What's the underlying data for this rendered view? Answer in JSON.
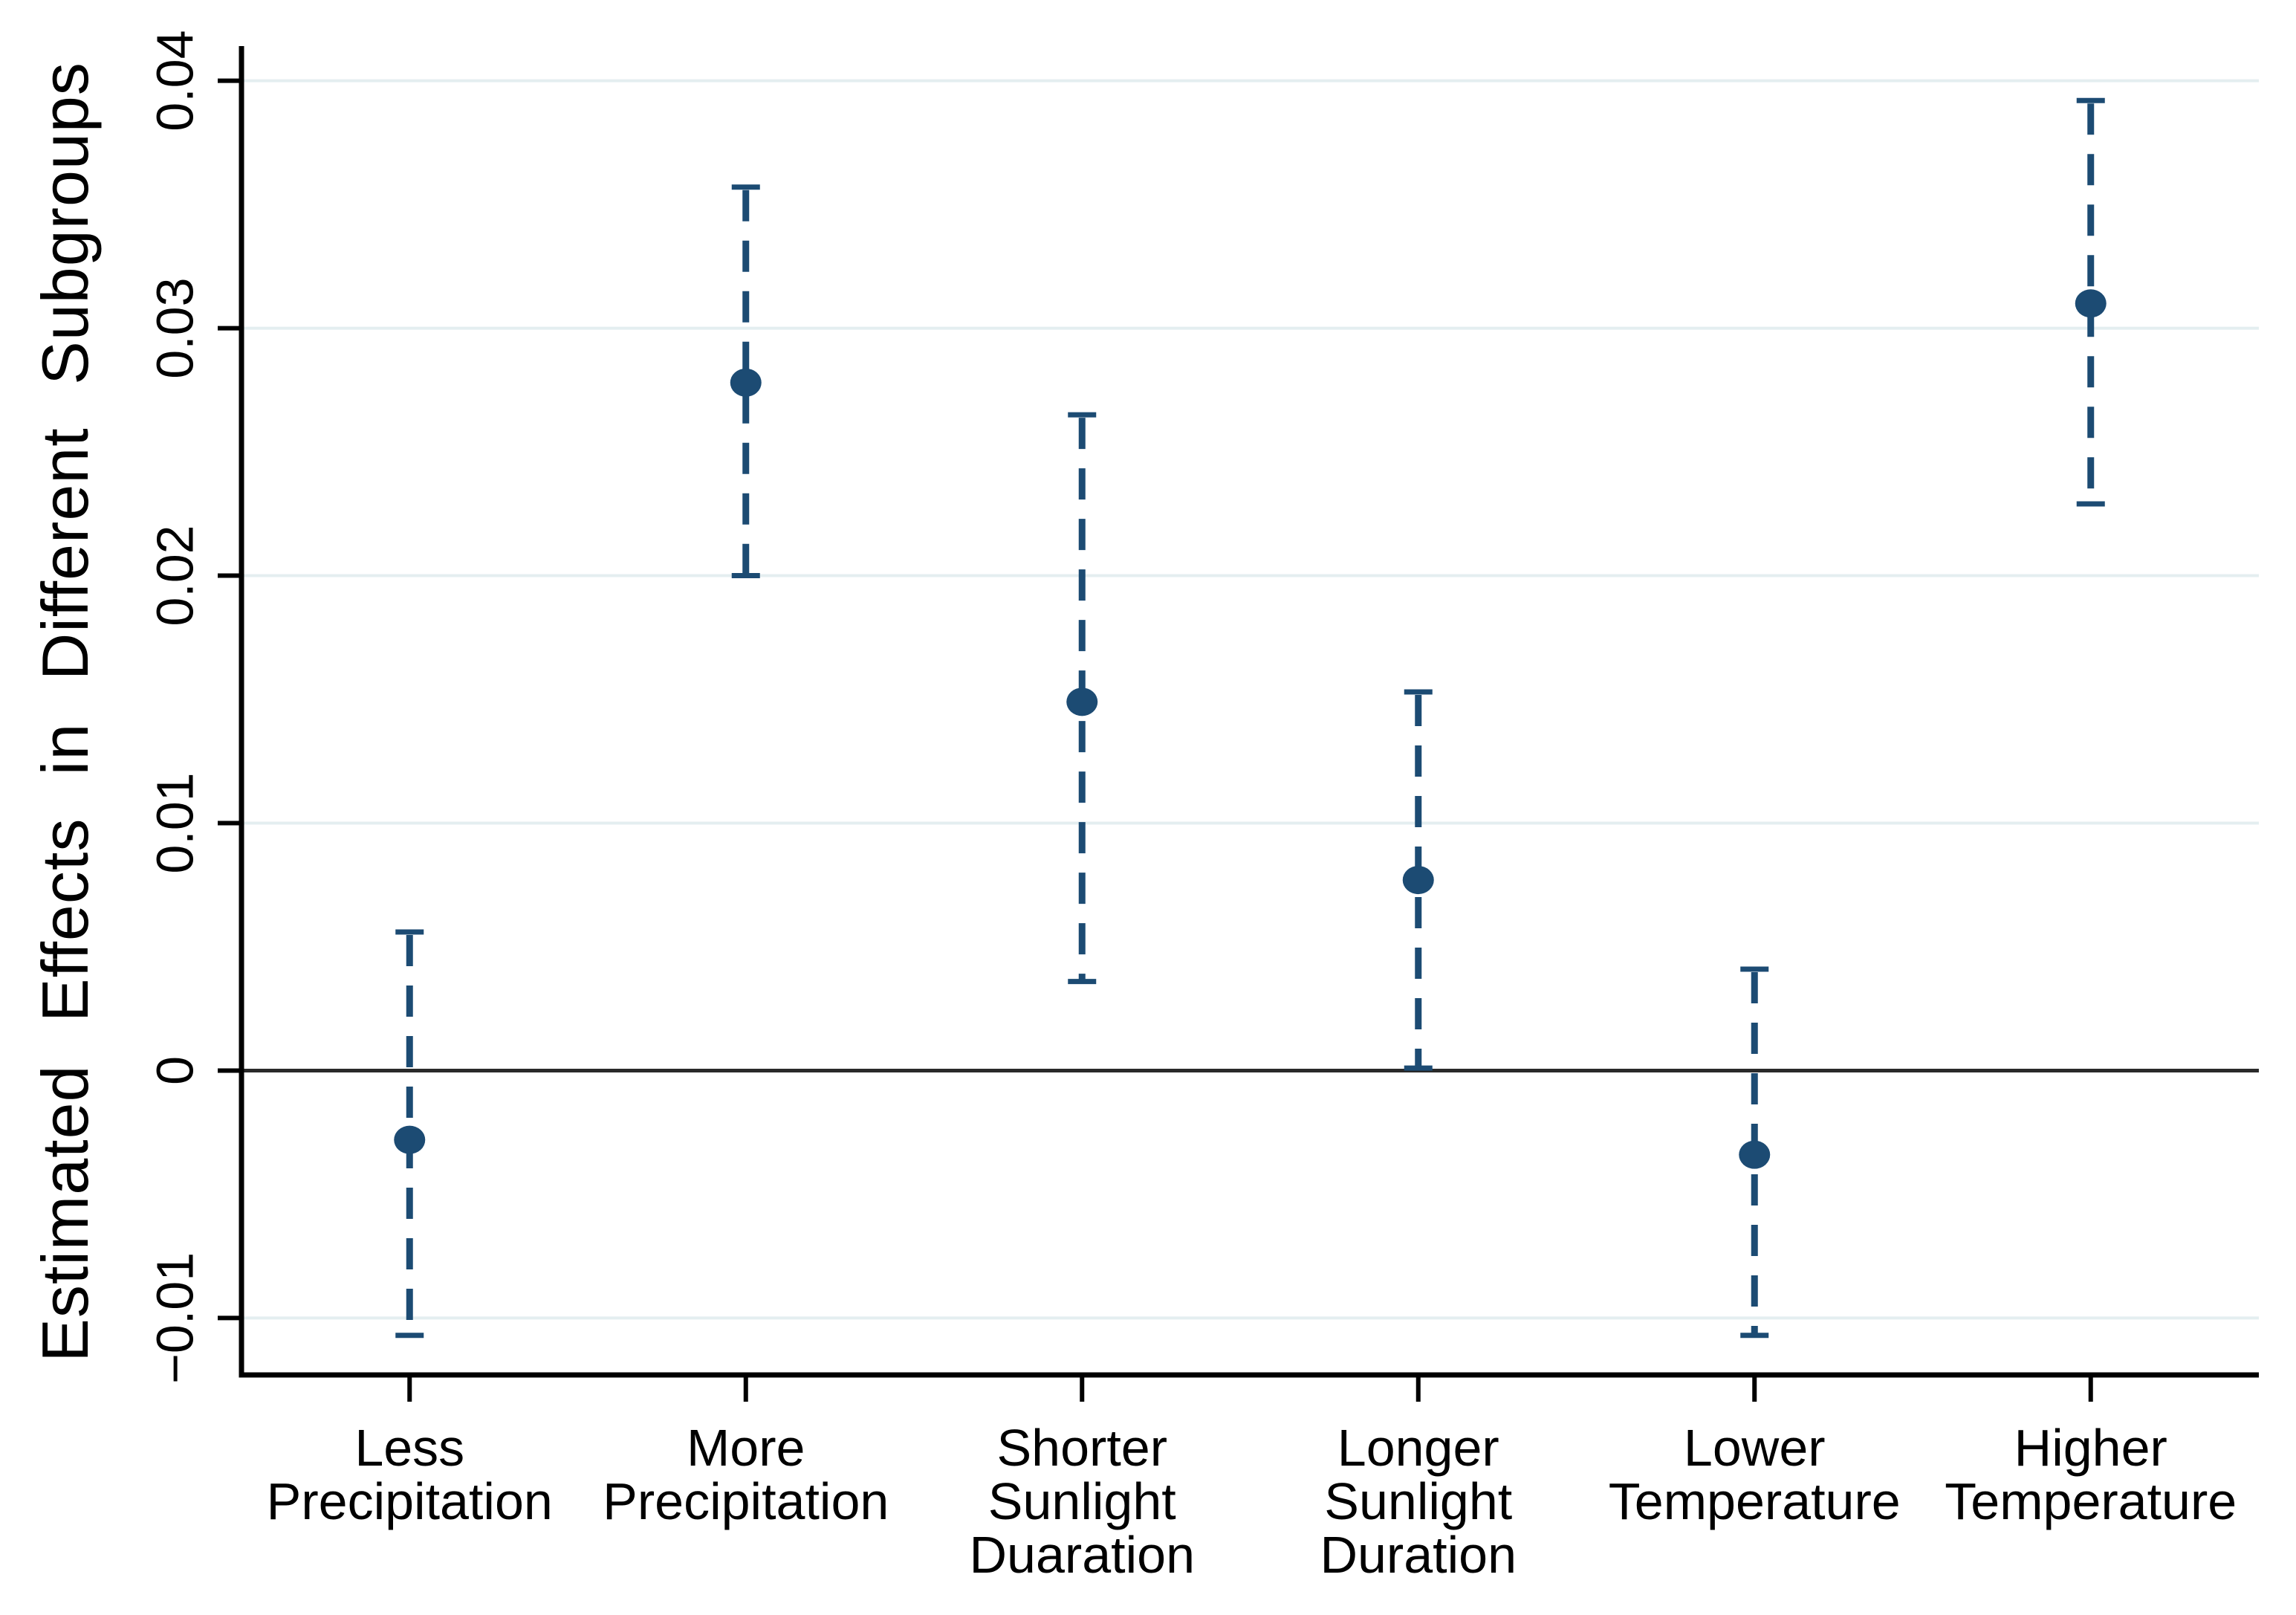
{
  "figure": {
    "background": "#ffffff",
    "ylabel": "Estimated Effects in Different Subgroups"
  },
  "chart_data": {
    "type": "scatter",
    "subtype": "coefficient-plot-with-error-bars",
    "title": "",
    "xlabel": "",
    "ylabel": "Estimated Effects in Different Subgroups",
    "legend": "none",
    "grid": "horizontal",
    "zero_line": true,
    "ylim": [
      -0.0123,
      0.0414
    ],
    "yticks": {
      "values": [
        -0.01,
        0,
        0.01,
        0.02,
        0.03,
        0.04
      ],
      "labels": [
        "−0.01",
        "0",
        "0.01",
        "0.02",
        "0.03",
        "0.04"
      ]
    },
    "categories": [
      "Less Precipitation",
      "More Precipitation",
      "Shorter Sunlight Duaration",
      "Longer Sunlight Duration",
      "Lower Temperature",
      "Higher Temperature"
    ],
    "points": [
      {
        "category": "Less Precipitation",
        "label_lines": [
          "Less",
          "Precipitation"
        ],
        "estimate": -0.0028,
        "ci_low": -0.0107,
        "ci_high": 0.0056
      },
      {
        "category": "More Precipitation",
        "label_lines": [
          "More",
          "Precipitation"
        ],
        "estimate": 0.0278,
        "ci_low": 0.02,
        "ci_high": 0.0357
      },
      {
        "category": "Shorter Sunlight Duaration",
        "label_lines": [
          "Shorter",
          "Sunlight",
          "Duaration"
        ],
        "estimate": 0.0149,
        "ci_low": 0.0036,
        "ci_high": 0.0265
      },
      {
        "category": "Longer Sunlight Duration",
        "label_lines": [
          "Longer",
          "Sunlight",
          "Duration"
        ],
        "estimate": 0.0077,
        "ci_low": 0.0001,
        "ci_high": 0.0153
      },
      {
        "category": "Lower Temperature",
        "label_lines": [
          "Lower",
          "Temperature"
        ],
        "estimate": -0.0034,
        "ci_low": -0.0107,
        "ci_high": 0.0041
      },
      {
        "category": "Higher Temperature",
        "label_lines": [
          "Higher",
          "Temperature"
        ],
        "estimate": 0.031,
        "ci_low": 0.0229,
        "ci_high": 0.0392
      }
    ],
    "colors": {
      "marker": "#1c4b73",
      "error_bar": "#1c4b73",
      "gridline": "#e4eef0",
      "zero_line": "#2a2a2a",
      "axis": "#000000",
      "text": "#000000",
      "background": "#ffffff"
    }
  }
}
